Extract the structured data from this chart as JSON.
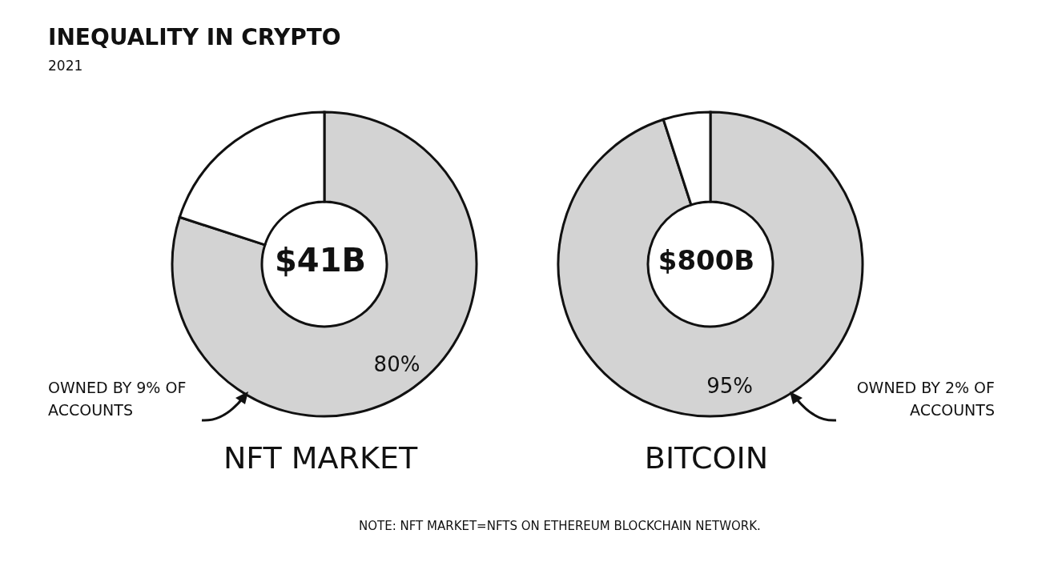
{
  "chart_data": [
    {
      "type": "donut",
      "title": "INEQUALITY IN CRYPTO",
      "subtitle": "2021",
      "xlabel": "NFT MARKET",
      "categories": [
        null,
        null
      ],
      "values": [
        80,
        20
      ],
      "colors": [
        "#d3d3d3",
        "#ffffff"
      ],
      "value_labels": [
        "80%",
        null
      ],
      "annotations": [
        "$41B",
        "OWNED BY 9% OF ACCOUNTS",
        "NOTE: NFT MARKET=NFTS ON ETHEREUM BLOCKCHAIN NETWORK."
      ]
    },
    {
      "type": "donut",
      "xlabel": "BITCOIN",
      "categories": [
        null,
        null
      ],
      "values": [
        95,
        5
      ],
      "colors": [
        "#d3d3d3",
        "#ffffff"
      ],
      "value_labels": [
        "95%",
        null
      ],
      "annotations": [
        "$800B",
        "OWNED BY 2% OF ACCOUNTS"
      ]
    }
  ]
}
